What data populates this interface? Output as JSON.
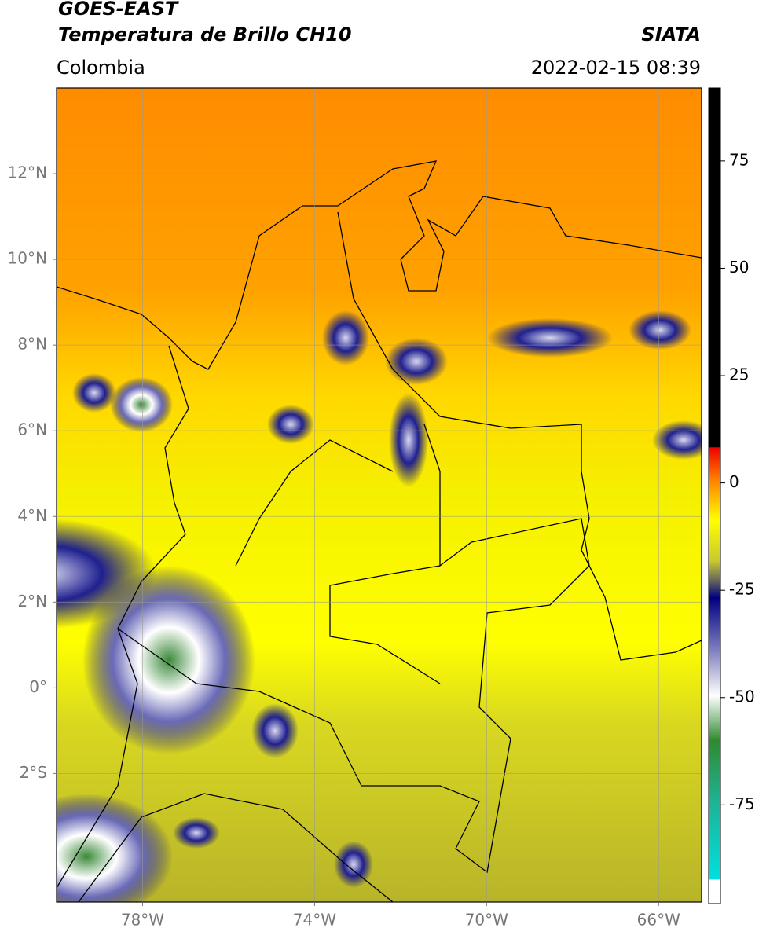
{
  "header": {
    "title_line1": "GOES-EAST",
    "title_line2": "Temperatura de Brillo CH10",
    "source": "SIATA",
    "region": "Colombia",
    "datetime": "2022-02-15 08:39"
  },
  "map": {
    "xlim": [
      -80,
      -65
    ],
    "ylim": [
      -5,
      14
    ],
    "grid": true,
    "xticks": [
      {
        "value": -78,
        "label": "78°W"
      },
      {
        "value": -74,
        "label": "74°W"
      },
      {
        "value": -70,
        "label": "70°W"
      },
      {
        "value": -66,
        "label": "66°W"
      }
    ],
    "yticks": [
      {
        "value": 12,
        "label": "12°N"
      },
      {
        "value": 10,
        "label": "10°N"
      },
      {
        "value": 8,
        "label": "8°N"
      },
      {
        "value": 6,
        "label": "6°N"
      },
      {
        "value": 4,
        "label": "4°N"
      },
      {
        "value": 2,
        "label": "2°N"
      },
      {
        "value": 0,
        "label": "0°"
      },
      {
        "value": -2,
        "label": "2°S"
      }
    ]
  },
  "colorbar": {
    "lim": [
      -98,
      92
    ],
    "ticks": [
      75,
      50,
      25,
      0,
      -25,
      -50,
      -75
    ]
  }
}
